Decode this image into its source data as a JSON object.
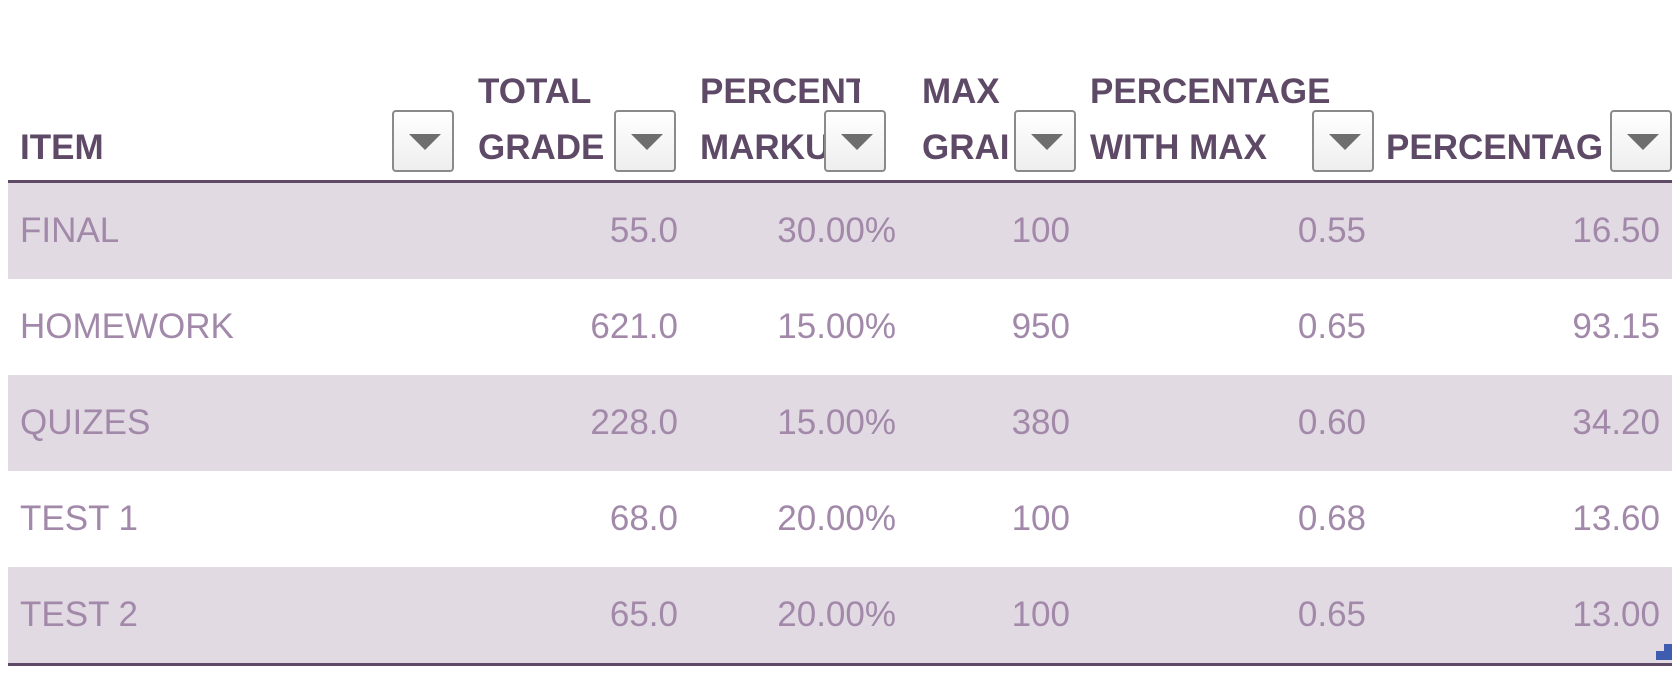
{
  "table": {
    "columns": [
      {
        "label": "ITEM"
      },
      {
        "label": "TOTAL\nGRADE"
      },
      {
        "label": "PERCENT\nMARKU"
      },
      {
        "label": "MAX\nGRAI"
      },
      {
        "label": "PERCENTAGE\nWITH MAX"
      },
      {
        "label": "PERCENTAG"
      }
    ],
    "rows": [
      {
        "item": "FINAL",
        "total_grade": "55.0",
        "percent_mark": "30.00%",
        "max_grade": "100",
        "pct_with_max": "0.55",
        "percentage": "16.50"
      },
      {
        "item": "HOMEWORK",
        "total_grade": "621.0",
        "percent_mark": "15.00%",
        "max_grade": "950",
        "pct_with_max": "0.65",
        "percentage": "93.15"
      },
      {
        "item": "QUIZES",
        "total_grade": "228.0",
        "percent_mark": "15.00%",
        "max_grade": "380",
        "pct_with_max": "0.60",
        "percentage": "34.20"
      },
      {
        "item": "TEST 1",
        "total_grade": "68.0",
        "percent_mark": "20.00%",
        "max_grade": "100",
        "pct_with_max": "0.68",
        "percentage": "13.60"
      },
      {
        "item": "TEST 2",
        "total_grade": "65.0",
        "percent_mark": "20.00%",
        "max_grade": "100",
        "pct_with_max": "0.65",
        "percentage": "13.00"
      }
    ]
  },
  "colors": {
    "header_text": "#5e4a66",
    "cell_text": "#a289aa",
    "band": "#e2dae3",
    "rule": "#5e4a66"
  },
  "icons": {
    "filter": "filter-dropdown-icon",
    "resize": "table-resize-handle-icon"
  }
}
